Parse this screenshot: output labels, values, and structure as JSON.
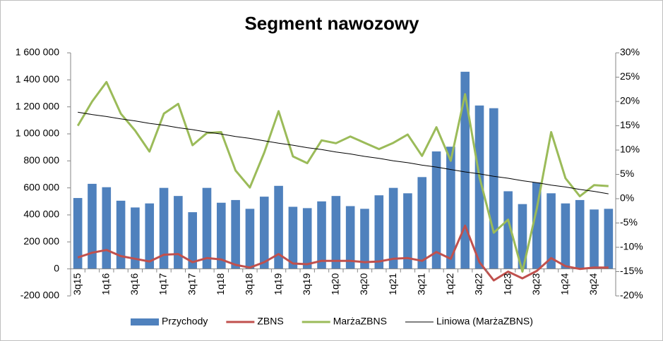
{
  "chart_data": {
    "type": "bar",
    "title": "Segment nawozowy",
    "categories": [
      "3q15",
      null,
      "1q16",
      null,
      "3q16",
      null,
      "1q17",
      null,
      "3q17",
      null,
      "1q18",
      null,
      "3q18",
      null,
      "1q19",
      null,
      "3q19",
      null,
      "1q20",
      null,
      "3q20",
      null,
      "1q21",
      null,
      "3q21",
      null,
      "1q22",
      null,
      "3q22",
      null,
      "1q23",
      null,
      "3q23",
      null,
      "1q24",
      null,
      "3q24",
      null
    ],
    "series": [
      {
        "name": "Przychody",
        "type": "bar",
        "color": "#4f81bd",
        "values": [
          525000,
          630000,
          605000,
          505000,
          455000,
          485000,
          600000,
          540000,
          420000,
          600000,
          490000,
          510000,
          445000,
          535000,
          615000,
          460000,
          450000,
          500000,
          540000,
          465000,
          445000,
          545000,
          600000,
          560000,
          680000,
          870000,
          905000,
          1460000,
          1210000,
          1190000,
          575000,
          480000,
          640000,
          560000,
          485000,
          510000,
          440000,
          445000
        ]
      },
      {
        "name": "ZBNS",
        "type": "line",
        "color": "#c0504d",
        "values": [
          85000,
          120000,
          140000,
          95000,
          75000,
          55000,
          105000,
          110000,
          50000,
          80000,
          70000,
          30000,
          10000,
          50000,
          110000,
          40000,
          35000,
          60000,
          60000,
          60000,
          50000,
          55000,
          75000,
          80000,
          60000,
          125000,
          75000,
          320000,
          50000,
          -85000,
          -20000,
          -70000,
          -15000,
          80000,
          20000,
          0,
          10000,
          10000
        ]
      },
      {
        "name": "MarżaZBNS",
        "type": "line",
        "axis": "y2",
        "color": "#9bbb59",
        "values": [
          15,
          20,
          24,
          17.5,
          14,
          9.7,
          17.5,
          19.5,
          11,
          13.5,
          13.7,
          5.8,
          2.3,
          9.5,
          18,
          8.7,
          7.3,
          12,
          11.4,
          12.8,
          11.5,
          10.2,
          11.5,
          13.2,
          8.8,
          14.7,
          7.8,
          21.5,
          4.5,
          -7,
          -4.3,
          -15,
          -2,
          13.7,
          4.2,
          0.5,
          2.8,
          2.6
        ]
      },
      {
        "name": "Liniowa (MarżaZBNS)",
        "type": "line",
        "axis": "y2",
        "color": "#000000",
        "values": [
          17.8,
          17.3,
          16.9,
          16.4,
          16.0,
          15.5,
          15.1,
          14.6,
          14.2,
          13.7,
          13.3,
          12.8,
          12.4,
          11.9,
          11.4,
          11.0,
          10.5,
          10.1,
          9.6,
          9.2,
          8.7,
          8.3,
          7.8,
          7.4,
          6.9,
          6.5,
          6.0,
          5.5,
          5.1,
          4.6,
          4.2,
          3.7,
          3.3,
          2.8,
          2.4,
          1.9,
          1.5,
          1.0
        ]
      }
    ],
    "ylim": [
      -200000,
      1600000
    ],
    "yticks": [
      {
        "value": -200000,
        "label": "-200 000"
      },
      0,
      {
        "value": 200000,
        "label": "200 000"
      },
      {
        "value": 400000,
        "label": "400 000"
      },
      {
        "value": 600000,
        "label": "600 000"
      },
      {
        "value": 800000,
        "label": "800 000"
      },
      {
        "value": 1000000,
        "label": "1 000 000"
      },
      {
        "value": 1200000,
        "label": "1 200 000"
      },
      {
        "value": 1400000,
        "label": "1 400 000"
      },
      {
        "value": 1600000,
        "label": "1 600 000"
      }
    ],
    "y2lim": [
      -20,
      30
    ],
    "y2ticks": [
      {
        "value": -20,
        "label": "-20%"
      },
      {
        "value": -15,
        "label": "-15%"
      },
      {
        "value": -10,
        "label": "-10%"
      },
      {
        "value": -5,
        "label": "-5%"
      },
      {
        "value": 0,
        "label": "0%"
      },
      {
        "value": 5,
        "label": "5%"
      },
      {
        "value": 10,
        "label": "10%"
      },
      {
        "value": 15,
        "label": "15%"
      },
      {
        "value": 20,
        "label": "20%"
      },
      {
        "value": 25,
        "label": "25%"
      },
      {
        "value": 30,
        "label": "30%"
      }
    ],
    "grid": false,
    "legend": "bottom"
  }
}
